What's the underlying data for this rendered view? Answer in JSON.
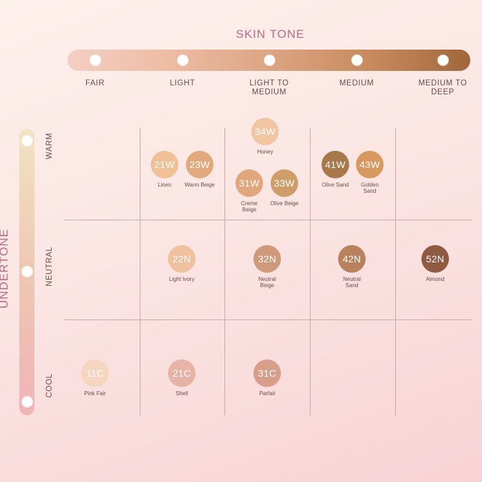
{
  "skin_tone_title": "SKIN TONE",
  "undertone_title": "UNDERTONE",
  "skin_tones": [
    "FAIR",
    "LIGHT",
    "LIGHT TO MEDIUM",
    "MEDIUM",
    "MEDIUM TO DEEP"
  ],
  "undertones": [
    "WARM",
    "NEUTRAL",
    "COOL"
  ],
  "shades": [
    {
      "code": "34W",
      "name": "Honey",
      "undertone": "WARM",
      "skin_tone": "LIGHT TO MEDIUM",
      "color": "#f0c6a3"
    },
    {
      "code": "21W",
      "name": "Linen",
      "undertone": "WARM",
      "skin_tone": "LIGHT",
      "color": "#f0c196"
    },
    {
      "code": "23W",
      "name": "Warm Beige",
      "undertone": "WARM",
      "skin_tone": "LIGHT",
      "color": "#e2a97d"
    },
    {
      "code": "31W",
      "name": "Creme Beige",
      "undertone": "WARM",
      "skin_tone": "LIGHT TO MEDIUM",
      "color": "#e1a67c"
    },
    {
      "code": "33W",
      "name": "Olive Beige",
      "undertone": "WARM",
      "skin_tone": "LIGHT TO MEDIUM",
      "color": "#cf9d6a"
    },
    {
      "code": "41W",
      "name": "Olive Sand",
      "undertone": "WARM",
      "skin_tone": "MEDIUM",
      "color": "#a6784a"
    },
    {
      "code": "43W",
      "name": "Golden Sand",
      "undertone": "WARM",
      "skin_tone": "MEDIUM",
      "color": "#d99860"
    },
    {
      "code": "22N",
      "name": "Light Ivory",
      "undertone": "NEUTRAL",
      "skin_tone": "LIGHT",
      "color": "#efc19f"
    },
    {
      "code": "32N",
      "name": "Neutral Beige",
      "undertone": "NEUTRAL",
      "skin_tone": "LIGHT TO MEDIUM",
      "color": "#cf9a7b"
    },
    {
      "code": "42N",
      "name": "Neutral Sand",
      "undertone": "NEUTRAL",
      "skin_tone": "MEDIUM",
      "color": "#b9825d"
    },
    {
      "code": "52N",
      "name": "Almond",
      "undertone": "NEUTRAL",
      "skin_tone": "MEDIUM TO DEEP",
      "color": "#8e5a42"
    },
    {
      "code": "11C",
      "name": "Pink Fair",
      "undertone": "COOL",
      "skin_tone": "FAIR",
      "color": "#f6d6c0"
    },
    {
      "code": "21C",
      "name": "Shell",
      "undertone": "COOL",
      "skin_tone": "LIGHT",
      "color": "#e7b3a7"
    },
    {
      "code": "31C",
      "name": "Parfait",
      "undertone": "COOL",
      "skin_tone": "LIGHT TO MEDIUM",
      "color": "#d79f8a"
    }
  ]
}
